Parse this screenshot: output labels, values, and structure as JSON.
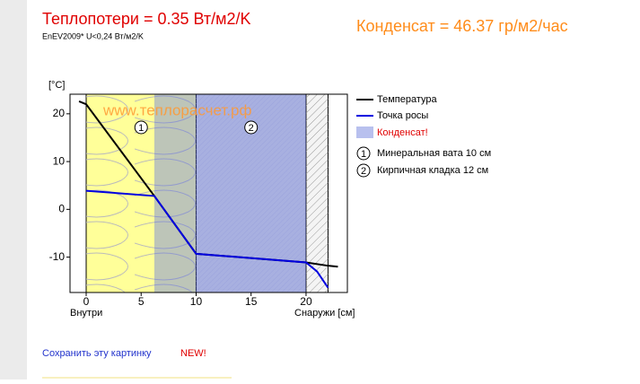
{
  "header": {
    "title": "Теплопотери = 0.35 Вт/м2/K",
    "subtitle": "EnEV2009* U<0,24 Вт/м2/K",
    "condensate": "Конденсат = 46.37 гр/м2/час"
  },
  "chart_data": {
    "type": "line",
    "watermark": "www.теплорасчет.рф",
    "ylabel": "[°C]",
    "xlabel_left": "Внутри",
    "xlabel": "Снаружи [см]",
    "xlim": [
      -1.47,
      23.76
    ],
    "ylim": [
      -17.4,
      24.1
    ],
    "xticks": [
      0,
      5,
      10,
      15,
      20
    ],
    "yticks": [
      -10,
      0,
      10,
      20
    ],
    "series": [
      {
        "name": "Температура",
        "color": "#000000",
        "x": [
          -0.65,
          0,
          6.2,
          10,
          20,
          22,
          22.9
        ],
        "values": [
          22.6,
          22,
          2.8,
          -9.3,
          -11.1,
          -11.8,
          -12
        ]
      },
      {
        "name": "Точка росы",
        "color": "#0000e0",
        "x": [
          0,
          6.2,
          10,
          20,
          21,
          22
        ],
        "values": [
          3.9,
          2.8,
          -9.3,
          -11.1,
          -13,
          -16.4
        ]
      }
    ],
    "condensate": {
      "name": "Конденсат!",
      "color": "#b8c0ee",
      "range": [
        6.2,
        20
      ]
    },
    "layers": [
      {
        "number": "1",
        "label": "Минеральная вата 10 см",
        "range": [
          0,
          10
        ],
        "color": "#ffff99"
      },
      {
        "number": "2",
        "label": "Кирпичная кладка 12 см",
        "range": [
          10,
          20
        ],
        "color": "#dcdcdc"
      },
      {
        "range": [
          20,
          22
        ],
        "color": "#f4f4f4"
      }
    ]
  },
  "footer": {
    "link": "Сохранить эту картинку",
    "badge": "NEW!"
  }
}
